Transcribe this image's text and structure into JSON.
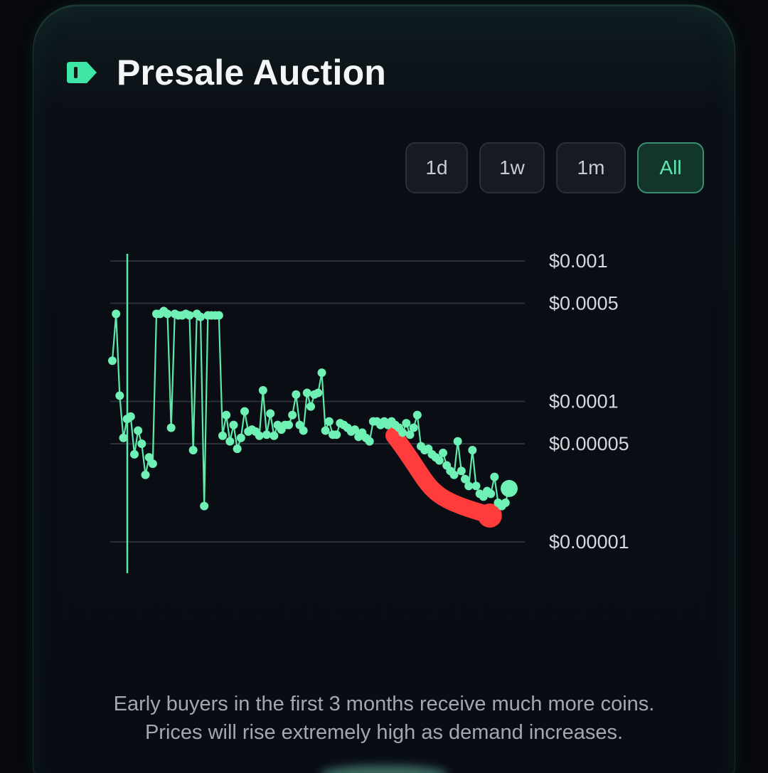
{
  "header": {
    "title": "Presale Auction",
    "icon": "tag-icon",
    "accent_color": "#3ee6a5"
  },
  "range_buttons": [
    {
      "label": "1d",
      "active": false
    },
    {
      "label": "1w",
      "active": false
    },
    {
      "label": "1m",
      "active": false
    },
    {
      "label": "All",
      "active": true
    }
  ],
  "chart_data": {
    "type": "line",
    "title": "",
    "xlabel": "",
    "ylabel": "",
    "y_scale": "log",
    "ylim": [
      7e-06,
      0.0011
    ],
    "y_ticks": [
      0.001,
      0.0005,
      0.0001,
      5e-05,
      1e-05
    ],
    "y_tick_labels": [
      "$0.001",
      "$0.0005",
      "$0.0001",
      "$0.00005",
      "$0.00001"
    ],
    "grid": true,
    "legend": "none",
    "line_color": "#5fe8aa",
    "marker_color": "#6ff0b4",
    "annotation_color": "#ff3b3b",
    "series": [
      {
        "values": [
          0.000195,
          0.00042,
          0.00011,
          5.5e-05,
          7.5e-05,
          7.8e-05,
          4.2e-05,
          6.2e-05,
          5e-05,
          3e-05,
          4e-05,
          3.6e-05,
          0.00042,
          0.00042,
          0.00044,
          0.00042,
          6.5e-05,
          0.00042,
          0.00041,
          0.00041,
          0.00042,
          0.00041,
          4.5e-05,
          0.00042,
          0.0004,
          1.8e-05,
          0.00041,
          0.00041,
          0.00041,
          0.00041,
          5.7e-05,
          8e-05,
          5.2e-05,
          6.8e-05,
          4.6e-05,
          5.5e-05,
          8.5e-05,
          6.1e-05,
          6.3e-05,
          6.1e-05,
          5.7e-05,
          0.00012,
          5.8e-05,
          8.2e-05,
          5.7e-05,
          6.8e-05,
          6.3e-05,
          6.8e-05,
          6.8e-05,
          8e-05,
          0.000112,
          6.8e-05,
          6.2e-05,
          0.000115,
          9.2e-05,
          0.000112,
          0.000115,
          0.00016,
          6.2e-05,
          7.2e-05,
          5.8e-05,
          5.8e-05,
          7e-05,
          6.8e-05,
          6.5e-05,
          6.1e-05,
          6.3e-05,
          5.6e-05,
          6e-05,
          5.5e-05,
          5.2e-05,
          7.2e-05,
          7.2e-05,
          6.8e-05,
          7.2e-05,
          6.8e-05,
          7.2e-05,
          6.8e-05,
          6.5e-05,
          6e-05,
          7e-05,
          5.8e-05,
          6.5e-05,
          8e-05,
          4.8e-05,
          4.5e-05,
          4.6e-05,
          4.2e-05,
          4e-05,
          3.8e-05,
          4.3e-05,
          3.5e-05,
          3.2e-05,
          3e-05,
          5.2e-05,
          3.2e-05,
          2.8e-05,
          2.5e-05,
          4.5e-05,
          2.5e-05,
          2.2e-05,
          2.1e-05,
          2.3e-05,
          2.2e-05,
          2.9e-05,
          1.9e-05,
          1.8e-05,
          1.9e-05,
          2.4e-05
        ],
        "spike_index": 4,
        "spike_range": [
          0.0011,
          7.5e-06
        ]
      }
    ],
    "annotations": [
      {
        "type": "highlight-stroke",
        "from_index": 84,
        "to_index": 107
      }
    ]
  },
  "footer": {
    "line1": "Early buyers in the first 3 months receive much more coins.",
    "line2": "Prices will rise extremely high as demand increases."
  }
}
